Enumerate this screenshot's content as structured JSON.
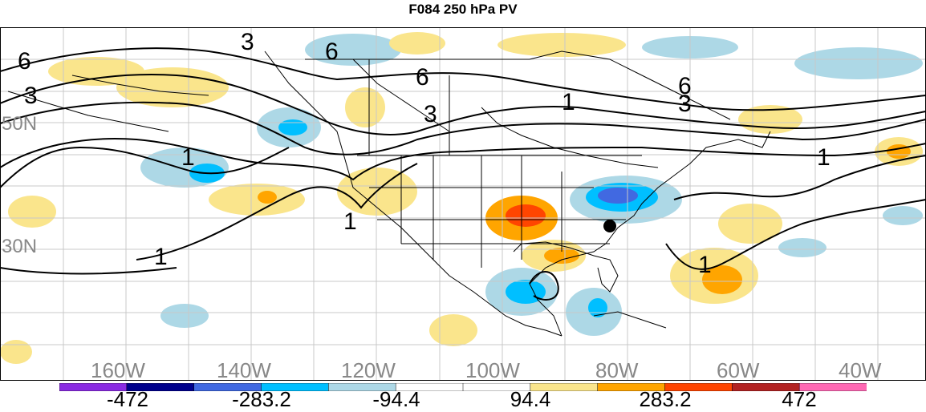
{
  "title": "F084 250 hPa PV",
  "latitude_labels": [
    "50N",
    "30N"
  ],
  "longitude_labels": [
    "160W",
    "140W",
    "120W",
    "100W",
    "80W",
    "60W",
    "40W"
  ],
  "contour_labels": [
    "6",
    "3",
    "6",
    "6",
    "3",
    "1",
    "6",
    "3",
    "1",
    "1",
    "1",
    "1",
    "1",
    "3"
  ],
  "colorbar": {
    "tick_labels": [
      "-472",
      "-283.2",
      "-94.4",
      "94.4",
      "283.2",
      "472"
    ],
    "colors": [
      "#8a2be2",
      "#00008b",
      "#4169e1",
      "#00bfff",
      "#add8e6",
      "#ffffff",
      "#ffffff",
      "#fae58c",
      "#ffa500",
      "#ff4500",
      "#b22222",
      "#ff69b4"
    ]
  },
  "marker": "black-dot"
}
